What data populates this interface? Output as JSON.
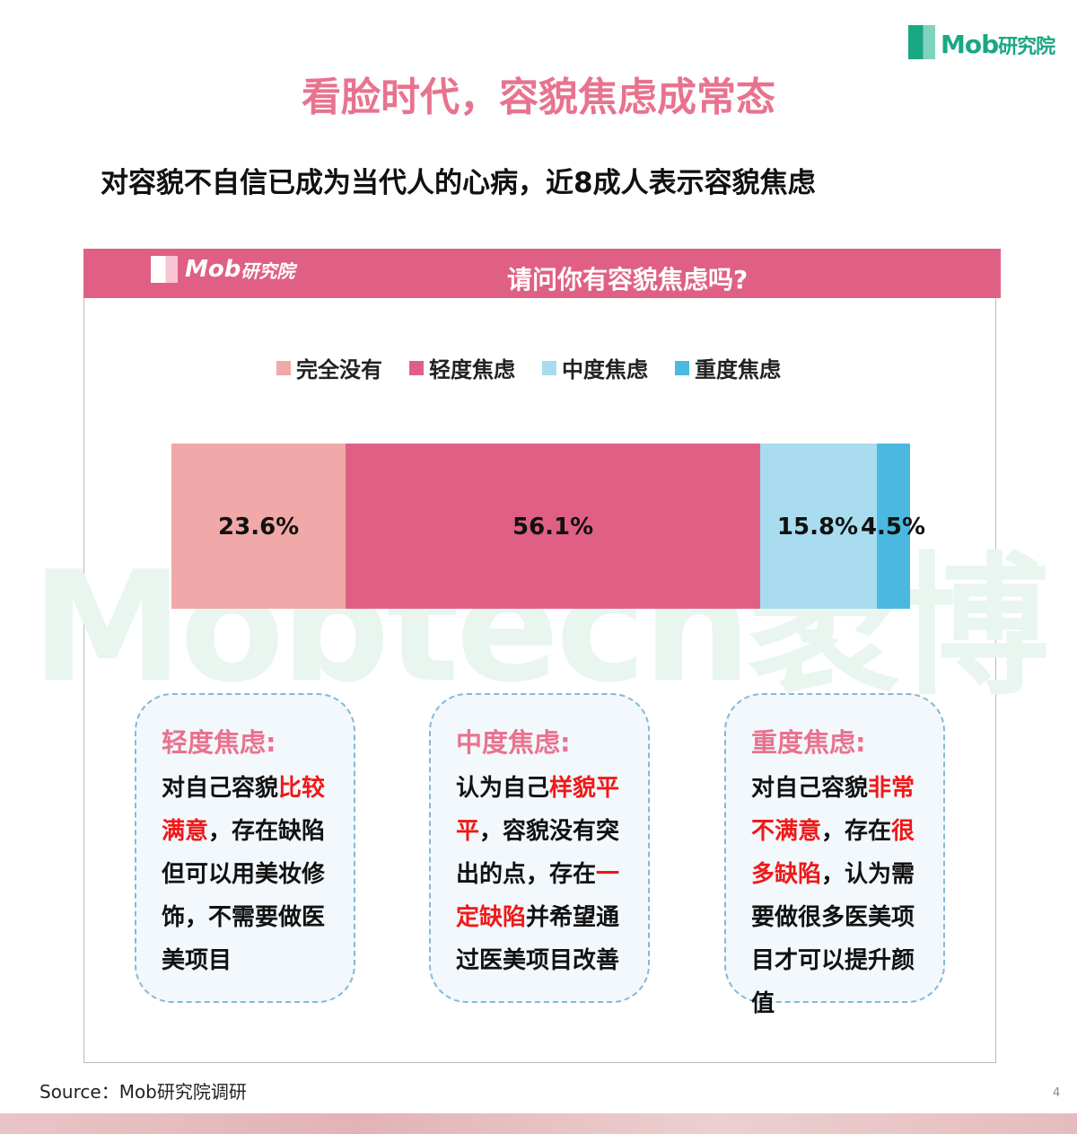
{
  "logo": {
    "text": "Mob",
    "sub": "研究院"
  },
  "title": "看脸时代，容貌焦虑成常态",
  "subtitle": "对容貌不自信已成为当代人的心病，近8成人表示容貌焦虑",
  "panel": {
    "question": "请问你有容貌焦虑吗?"
  },
  "watermark": "Mobtech袤博",
  "chart_data": {
    "type": "bar",
    "orientation": "horizontal-stacked",
    "unit": "%",
    "series": [
      {
        "name": "完全没有",
        "value": 23.6,
        "label": "23.6%",
        "color": "#f0a8a8"
      },
      {
        "name": "轻度焦虑",
        "value": 56.1,
        "label": "56.1%",
        "color": "#e06085"
      },
      {
        "name": "中度焦虑",
        "value": 15.8,
        "label": "15.8%",
        "color": "#a8dcee"
      },
      {
        "name": "重度焦虑",
        "value": 4.5,
        "label": "4.5%",
        "color": "#4ab8e0"
      }
    ],
    "legend": "top"
  },
  "boxes": [
    {
      "title": "轻度焦虑:",
      "segments": [
        {
          "t": "对自己容貌"
        },
        {
          "t": "比较满意",
          "hl": true
        },
        {
          "t": "，存在缺陷但可以用美妆修饰，不需要做医美项目"
        }
      ]
    },
    {
      "title": "中度焦虑:",
      "segments": [
        {
          "t": "认为自己"
        },
        {
          "t": "样貌平平",
          "hl": true
        },
        {
          "t": "，容貌没有突出的点，存在"
        },
        {
          "t": "一定缺陷",
          "hl": true
        },
        {
          "t": "并希望通过医美项目改善"
        }
      ]
    },
    {
      "title": "重度焦虑:",
      "segments": [
        {
          "t": "对自己容貌"
        },
        {
          "t": "非常不满意",
          "hl": true
        },
        {
          "t": "，存在"
        },
        {
          "t": "很多缺陷",
          "hl": true
        },
        {
          "t": "，认为需要做很多医美项目才可以提升颜值"
        }
      ]
    }
  ],
  "source": "Source：Mob研究院调研",
  "page_number": "4"
}
